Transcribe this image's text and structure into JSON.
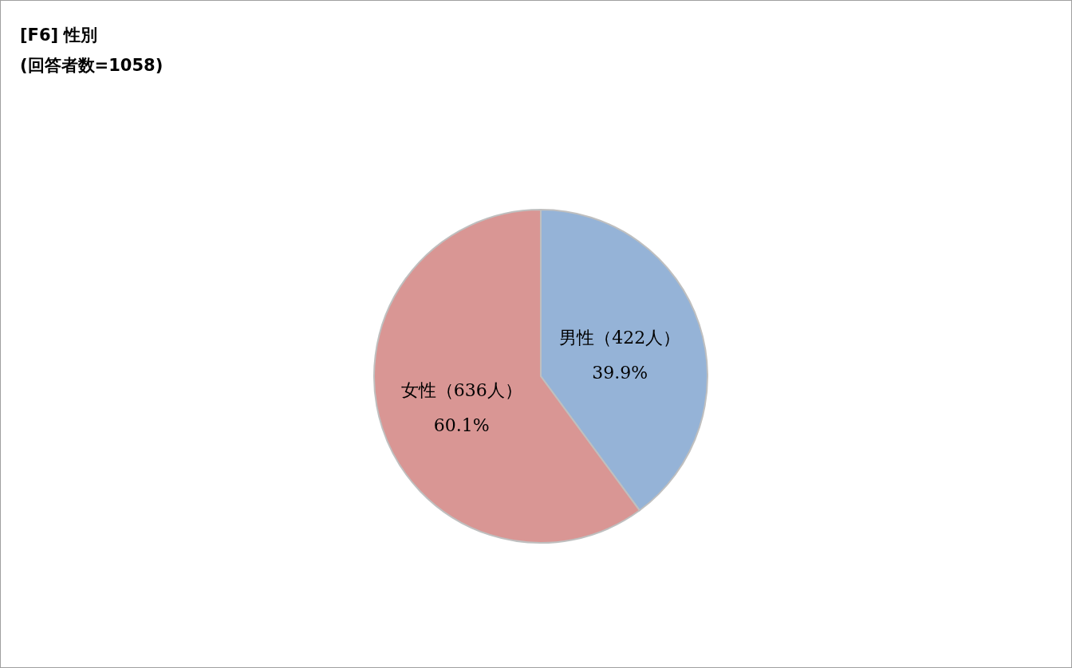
{
  "chart_data": {
    "type": "pie",
    "title": "[F6] 性別",
    "subtitle": "(回答者数=1058)",
    "categories": [
      "男性（422人）",
      "女性（636人）"
    ],
    "values": [
      39.9,
      60.1
    ],
    "value_labels": [
      "39.9%",
      "60.1%"
    ],
    "colors": [
      "#95b3d7",
      "#d99694"
    ]
  }
}
